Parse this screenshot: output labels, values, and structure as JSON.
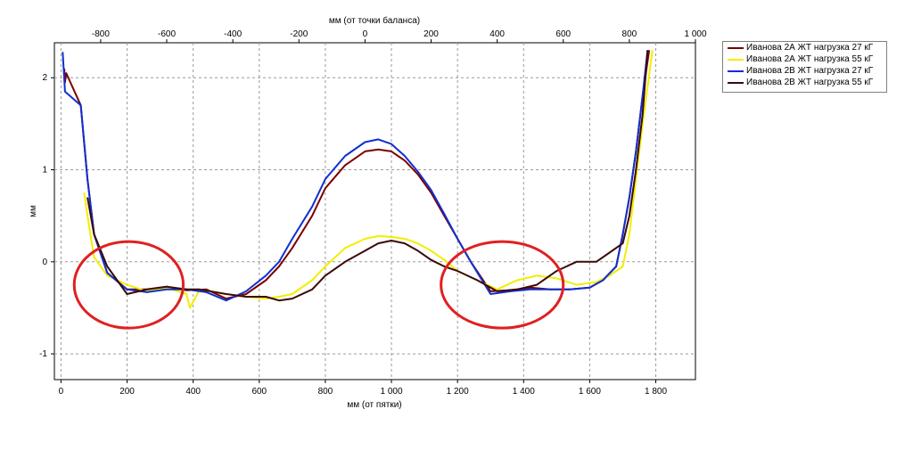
{
  "chart_data": {
    "type": "line",
    "top_axis_title": "мм (от точки баланса)",
    "xlabel": "мм (от пятки)",
    "ylabel": "мм",
    "xlim": [
      -20,
      1920
    ],
    "ylim": [
      -1.28,
      2.38
    ],
    "top_xlim": [
      -940,
      1000
    ],
    "x_ticks": [
      0,
      200,
      400,
      600,
      800,
      1000,
      1200,
      1400,
      1600,
      1800
    ],
    "x_tick_labels": [
      "0",
      "200",
      "400",
      "600",
      "800",
      "1 000",
      "1 200",
      "1 400",
      "1 600",
      "1 800"
    ],
    "top_ticks": [
      -800,
      -600,
      -400,
      -200,
      0,
      200,
      400,
      600,
      800,
      1000
    ],
    "top_tick_labels": [
      "-800",
      "-600",
      "-400",
      "-200",
      "0",
      "200",
      "400",
      "600",
      "800",
      "1 000"
    ],
    "y_ticks": [
      -1,
      0,
      1,
      2
    ],
    "y_tick_labels": [
      "-1",
      "0",
      "1",
      "2"
    ],
    "grid": true,
    "legend_position": "right",
    "series": [
      {
        "name": "Иванова 2А ЖТ нагрузка 27 кГ",
        "color": "#7b0000",
        "x": [
          10,
          12,
          16,
          60,
          80,
          100,
          140,
          200,
          260,
          320,
          380,
          440,
          500,
          560,
          620,
          660,
          700,
          760,
          800,
          860,
          920,
          960,
          1000,
          1040,
          1080,
          1120,
          1160,
          1200,
          1240,
          1300,
          1360,
          1420,
          1480,
          1540,
          1600,
          1640,
          1680,
          1700,
          1720,
          1740,
          1760,
          1780
        ],
        "values": [
          2.1,
          1.95,
          2.05,
          1.7,
          0.9,
          0.3,
          -0.12,
          -0.3,
          -0.3,
          -0.27,
          -0.31,
          -0.3,
          -0.4,
          -0.35,
          -0.2,
          -0.05,
          0.15,
          0.5,
          0.8,
          1.05,
          1.2,
          1.22,
          1.2,
          1.1,
          0.95,
          0.75,
          0.5,
          0.25,
          0.0,
          -0.32,
          -0.31,
          -0.28,
          -0.3,
          -0.3,
          -0.28,
          -0.2,
          -0.05,
          0.3,
          0.7,
          1.2,
          1.8,
          2.3
        ]
      },
      {
        "name": "Иванова 2А ЖТ нагрузка 55 кГ",
        "color": "#f2ee00",
        "x": [
          70,
          80,
          100,
          140,
          200,
          260,
          320,
          380,
          390,
          420,
          500,
          560,
          620,
          660,
          700,
          760,
          800,
          860,
          920,
          960,
          1000,
          1040,
          1080,
          1120,
          1160,
          1200,
          1260,
          1320,
          1380,
          1440,
          1500,
          1560,
          1620,
          1660,
          1700,
          1720,
          1740,
          1760,
          1790
        ],
        "values": [
          0.75,
          0.5,
          0.05,
          -0.15,
          -0.25,
          -0.32,
          -0.28,
          -0.35,
          -0.5,
          -0.3,
          -0.35,
          -0.38,
          -0.4,
          -0.38,
          -0.35,
          -0.2,
          -0.05,
          0.15,
          0.25,
          0.28,
          0.27,
          0.25,
          0.2,
          0.12,
          0.02,
          -0.1,
          -0.2,
          -0.3,
          -0.2,
          -0.15,
          -0.18,
          -0.25,
          -0.22,
          -0.15,
          -0.05,
          0.3,
          0.9,
          1.5,
          2.3
        ]
      },
      {
        "name": "Иванова 2В ЖТ нагрузка 27 кГ",
        "color": "#1030d0",
        "x": [
          5,
          8,
          12,
          60,
          80,
          100,
          140,
          200,
          260,
          320,
          380,
          440,
          500,
          560,
          620,
          660,
          700,
          760,
          800,
          860,
          920,
          960,
          1000,
          1040,
          1080,
          1120,
          1160,
          1200,
          1240,
          1300,
          1360,
          1420,
          1480,
          1540,
          1600,
          1640,
          1680,
          1700,
          1720,
          1740,
          1760,
          1775
        ],
        "values": [
          2.28,
          2.1,
          1.85,
          1.7,
          0.9,
          0.3,
          -0.12,
          -0.3,
          -0.33,
          -0.3,
          -0.3,
          -0.33,
          -0.42,
          -0.32,
          -0.15,
          0.0,
          0.25,
          0.6,
          0.9,
          1.15,
          1.3,
          1.33,
          1.28,
          1.15,
          0.98,
          0.78,
          0.52,
          0.25,
          0.0,
          -0.35,
          -0.32,
          -0.3,
          -0.3,
          -0.3,
          -0.28,
          -0.2,
          -0.05,
          0.3,
          0.7,
          1.2,
          1.8,
          2.3
        ]
      },
      {
        "name": "Иванова 2В ЖТ нагрузка 55 кГ",
        "color": "#3a0a0a",
        "x": [
          80,
          100,
          140,
          200,
          260,
          320,
          380,
          420,
          500,
          560,
          620,
          660,
          700,
          760,
          800,
          860,
          920,
          960,
          1000,
          1040,
          1080,
          1120,
          1160,
          1200,
          1260,
          1320,
          1380,
          1440,
          1500,
          1560,
          1620,
          1660,
          1700,
          1720,
          1740,
          1760,
          1775
        ],
        "values": [
          0.7,
          0.3,
          -0.05,
          -0.35,
          -0.3,
          -0.27,
          -0.3,
          -0.3,
          -0.35,
          -0.38,
          -0.38,
          -0.42,
          -0.4,
          -0.3,
          -0.15,
          0.0,
          0.12,
          0.2,
          0.23,
          0.2,
          0.12,
          0.02,
          -0.05,
          -0.1,
          -0.2,
          -0.32,
          -0.3,
          -0.25,
          -0.1,
          0.0,
          0.0,
          0.1,
          0.2,
          0.5,
          1.0,
          1.6,
          2.3
        ]
      }
    ],
    "annotations": [
      {
        "type": "ellipse",
        "color": "#e02020",
        "center": [
          205,
          -0.25
        ],
        "radius": [
          165,
          0.47
        ]
      },
      {
        "type": "ellipse",
        "color": "#e02020",
        "center": [
          1335,
          -0.25
        ],
        "radius": [
          185,
          0.47
        ]
      }
    ]
  }
}
